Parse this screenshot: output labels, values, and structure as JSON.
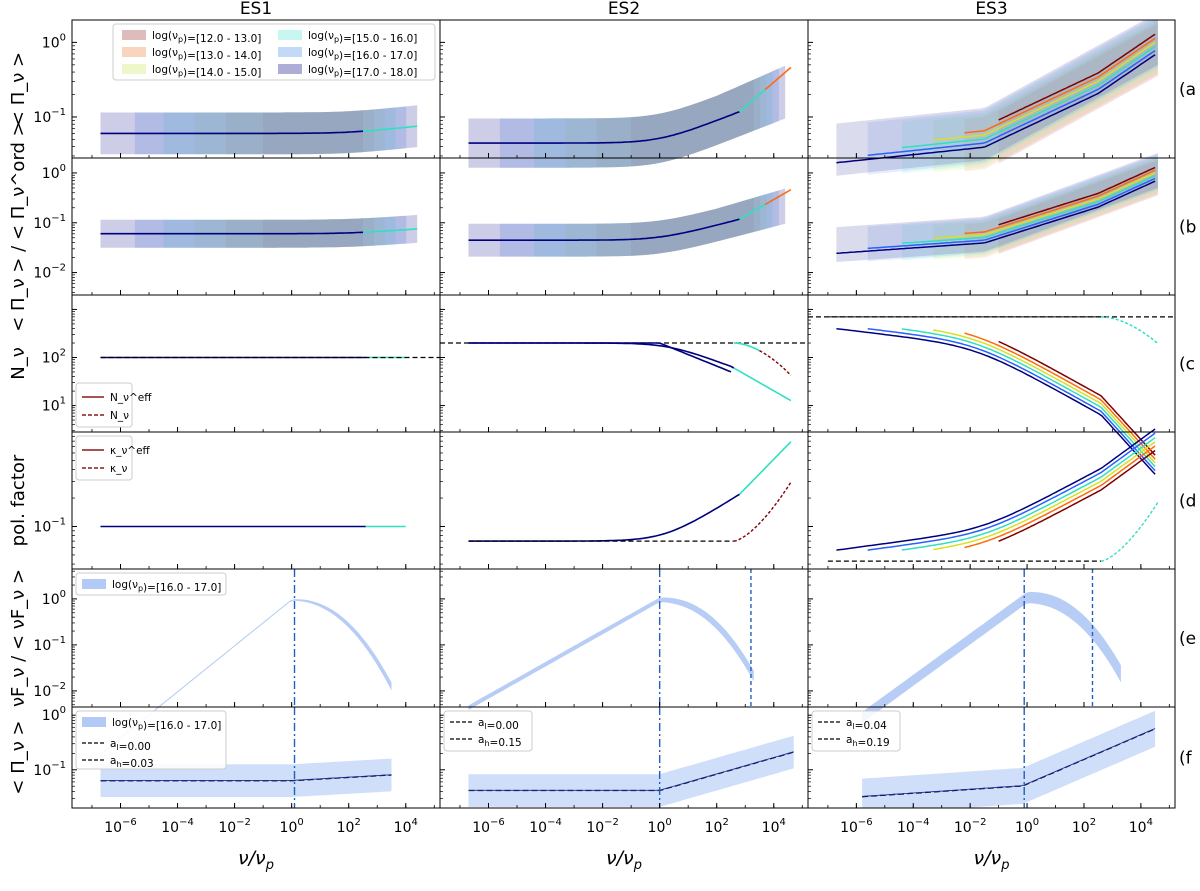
{
  "chart_data": {
    "type": "line",
    "layout": "6 rows x 3 columns of log-log panels",
    "column_titles": [
      "ES1",
      "ES2",
      "ES3"
    ],
    "row_labels": [
      "(a",
      "(b",
      "(c",
      "(d",
      "(e",
      "(f"
    ],
    "x_label": "ν/ν_p",
    "x_ticks": [
      {
        "base": "10",
        "exp": "−6",
        "value": 1e-06
      },
      {
        "base": "10",
        "exp": "−4",
        "value": 0.0001
      },
      {
        "base": "10",
        "exp": "−2",
        "value": 0.01
      },
      {
        "base": "10",
        "exp": "0",
        "value": 1
      },
      {
        "base": "10",
        "exp": "2",
        "value": 100.0
      },
      {
        "base": "10",
        "exp": "4",
        "value": 10000.0
      }
    ],
    "x_range_log10": [
      -7.7,
      5.2
    ],
    "rows": [
      {
        "id": "a",
        "ylabel": "< Π_ν >",
        "y_range_log10": [
          -1.55,
          0.3
        ],
        "y_ticks": [
          {
            "base": "10",
            "exp": "0",
            "value": 1
          },
          {
            "base": "10",
            "exp": "−1",
            "value": 0.1
          }
        ],
        "legend_entries": [
          {
            "label": "log(ν_p)=[12.0 - 13.0]",
            "color": "#b86a6a"
          },
          {
            "label": "log(ν_p)=[13.0 - 14.0]",
            "color": "#f2a070"
          },
          {
            "label": "log(ν_p)=[14.0 - 15.0]",
            "color": "#d8ee88"
          },
          {
            "label": "log(ν_p)=[15.0 - 16.0]",
            "color": "#80eedd"
          },
          {
            "label": "log(ν_p)=[16.0 - 17.0]",
            "color": "#7aaaf0"
          },
          {
            "label": "log(ν_p)=[17.0 - 18.0]",
            "color": "#4a4aa8"
          }
        ]
      },
      {
        "id": "b",
        "ylabel": "< Π_ν > / < Π_ν^ord >",
        "y_range_log10": [
          -2.45,
          0.3
        ],
        "y_ticks": [
          {
            "base": "10",
            "exp": "0",
            "value": 1
          },
          {
            "base": "10",
            "exp": "−1",
            "value": 0.1
          },
          {
            "base": "10",
            "exp": "−2",
            "value": 0.01
          }
        ]
      },
      {
        "id": "c",
        "ylabel": "N_ν",
        "y_range_log10": [
          0.45,
          3.3
        ],
        "y_ticks": [
          {
            "base": "10",
            "exp": "2",
            "value": 100
          },
          {
            "base": "10",
            "exp": "1",
            "value": 10
          }
        ],
        "legend_entries": [
          {
            "label": "N_ν^eff",
            "style": "solid",
            "color": "#8b1a1a"
          },
          {
            "label": "N_ν",
            "style": "dashed",
            "color": "#8b1a1a"
          }
        ]
      },
      {
        "id": "d",
        "ylabel": "pol. factor",
        "y_range_log10": [
          -1.45,
          0.0
        ],
        "y_ticks": [
          {
            "base": "10",
            "exp": "−1",
            "value": 0.1
          }
        ],
        "legend_entries": [
          {
            "label": "κ_ν^eff",
            "style": "solid",
            "color": "#8b1a1a"
          },
          {
            "label": "κ_ν",
            "style": "dashed",
            "color": "#8b1a1a"
          }
        ]
      },
      {
        "id": "e",
        "ylabel": "νF_ν / < νF_ν >",
        "y_range_log10": [
          -2.35,
          0.65
        ],
        "y_ticks": [
          {
            "base": "10",
            "exp": "0",
            "value": 1
          },
          {
            "base": "10",
            "exp": "−1",
            "value": 0.1
          },
          {
            "base": "10",
            "exp": "−2",
            "value": 0.01
          }
        ],
        "legend_entries": [
          {
            "label": "log(ν_p)=[16.0 - 17.0]",
            "color": "#aac4f4"
          }
        ]
      },
      {
        "id": "f",
        "ylabel": "< Π_ν >",
        "y_range_log10": [
          -1.7,
          0.15
        ],
        "y_ticks": [
          {
            "base": "10",
            "exp": "0",
            "value": 1
          },
          {
            "base": "10",
            "exp": "−1",
            "value": 0.1
          }
        ],
        "legend_entries": [
          {
            "label": "log(ν_p)=[16.0 - 17.0]",
            "color": "#aac4f4"
          }
        ]
      }
    ],
    "fit_parameters": [
      {
        "column": "ES1",
        "a_l": "0.00",
        "a_h": "0.03"
      },
      {
        "column": "ES2",
        "a_l": "0.00",
        "a_h": "0.15"
      },
      {
        "column": "ES3",
        "a_l": "0.04",
        "a_h": "0.19"
      }
    ],
    "band_colors": [
      "#b86a6a",
      "#f2a070",
      "#d8ee88",
      "#80eedd",
      "#7aaaf0",
      "#4a4aa8"
    ],
    "line_colors": [
      "#7f0000",
      "#ff6a10",
      "#d8e020",
      "#30e0c0",
      "#2a60ff",
      "#00007f"
    ],
    "series": {
      "ES1": {
        "pi": {
          "flat_log10": -1.22,
          "x_knee_log10": 2.0,
          "slope": 0.04,
          "band_sigma_log10": 0.28
        },
        "N": {
          "value": 100
        },
        "pol": {
          "value": 0.1
        },
        "sed": {
          "peak_x_log10": 0.0,
          "rise_slope": 0.5,
          "max_log10": -0.02
        },
        "sed_vlines_log10": [
          0.1
        ],
        "f": {
          "flat_log10": -1.2,
          "x_knee_log10": 0.0,
          "high_slope": 0.03,
          "band_sigma_log10": 0.3
        }
      },
      "ES2": {
        "pi": {
          "flat_log10": -1.35,
          "x_knee_log10": 0.0,
          "slope": 0.15,
          "band_sigma_log10": 0.33
        },
        "N": {
          "N_value": 200,
          "eff_break_log10": 0.0
        },
        "pol": {
          "flat": 0.07,
          "eff_break_log10": 0.0
        },
        "sed": {
          "peak_x_log10": 0.0,
          "rise_slope": 0.35,
          "max_log10": -0.02
        },
        "sed_vlines_log10": [
          0.0,
          3.2
        ],
        "f": {
          "flat_log10": -1.38,
          "x_knee_log10": 0.0,
          "high_slope": 0.15,
          "band_sigma_log10": 0.3
        }
      },
      "ES3": {
        "pi": {
          "flat_log10": -1.45,
          "x_knee_log10": -2.0,
          "slope": 0.19,
          "band_sigma_log10": 0.35
        },
        "N": {
          "N_value": 700
        },
        "pol": {
          "flat": 0.043
        },
        "sed": {
          "peak_x_log10": 0.0,
          "rise_slope": 0.45,
          "max_log10": 0.03
        },
        "sed_vlines_log10": [
          -0.1,
          2.3
        ],
        "f": {
          "flat_log10": -1.5,
          "x_knee_log10": -0.15,
          "high_slope": 0.19,
          "band_sigma_log10": 0.33
        }
      }
    }
  }
}
